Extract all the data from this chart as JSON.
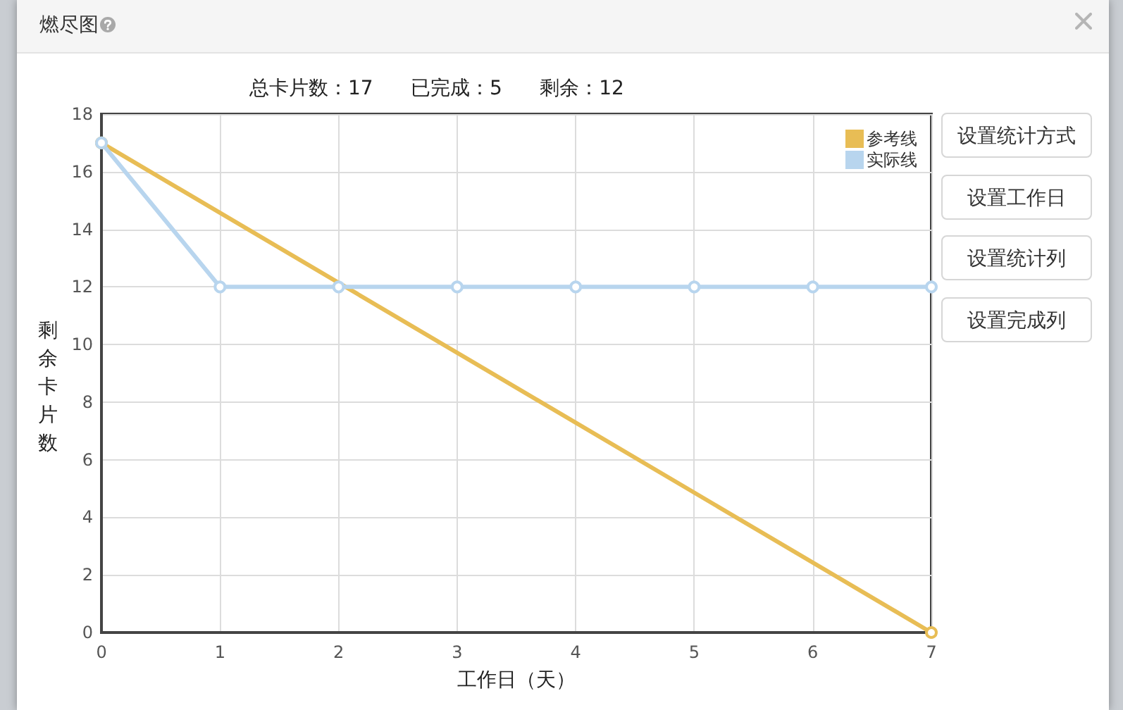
{
  "chart_data": {
    "type": "line",
    "title": "燃尽图",
    "subtitle": "总卡片数：17      已完成：5      剩余：12",
    "xlabel": "工作日（天）",
    "ylabel": "剩余卡片数",
    "series": [
      {
        "name": "参考线",
        "color": "#e8bd55",
        "x": [
          0,
          7
        ],
        "values": [
          17,
          0
        ]
      },
      {
        "name": "实际线",
        "color": "#b8d5ee",
        "x": [
          0,
          1,
          2,
          3,
          4,
          5,
          6,
          7
        ],
        "values": [
          17,
          12,
          12,
          12,
          12,
          12,
          12,
          12
        ]
      }
    ],
    "xlim": [
      0,
      7
    ],
    "xticks": [
      0,
      1,
      2,
      3,
      4,
      5,
      6,
      7
    ],
    "ylim": [
      0,
      18
    ],
    "yticks": [
      0,
      2,
      4,
      6,
      8,
      10,
      12,
      14,
      16,
      18
    ],
    "grid": true,
    "legend": "top right",
    "marker": "circle",
    "line_style": "solid",
    "annotations": [
      "设置统计方式",
      "设置工作日",
      "设置统计列",
      "设置完成列"
    ]
  }
}
